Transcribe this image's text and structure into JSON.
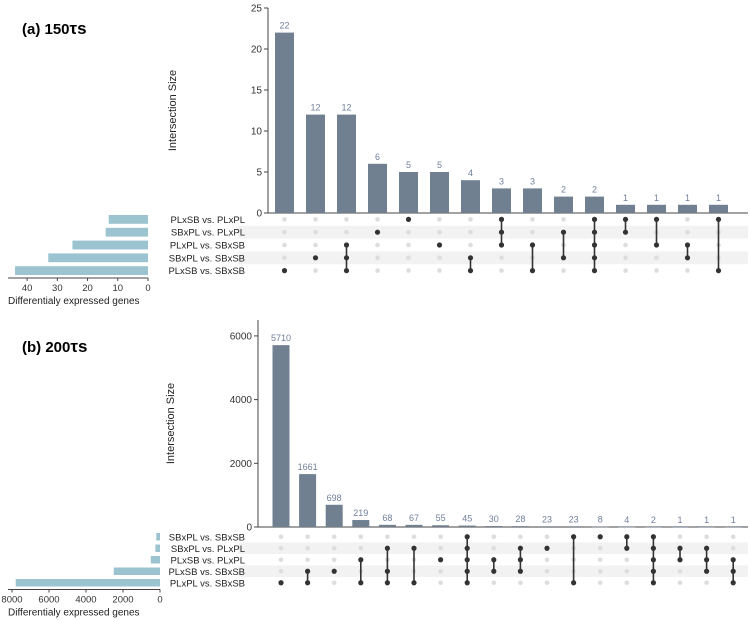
{
  "colors": {
    "bar": "#708090",
    "bar_label": "#6f7f9a",
    "set_bar": "#9cc3d0",
    "dot_on": "#333333",
    "dot_off": "#dddddd",
    "stripe": "#f2f2f2",
    "axis": "#444444"
  },
  "chart_data": [
    {
      "type": "bar",
      "panel_label": "(a) 150",
      "panel_label_tail": "τs",
      "ylabel": "Intersection Size",
      "ylim": [
        0,
        25
      ],
      "yticks": [
        "0",
        "5",
        "10",
        "15",
        "20",
        "25"
      ],
      "set_names": [
        "PLxSB vs. PLxPL",
        "SBxPL vs. PLxPL",
        "PLxPL vs. SBxSB",
        "SBxPL vs. SBxSB",
        "PLxSB vs. SBxSB"
      ],
      "set_sizes": [
        13,
        14,
        25,
        33,
        44
      ],
      "set_xlabel": "Differentialy expressed genes",
      "set_xlim": [
        0,
        45
      ],
      "set_xticks": [
        "40",
        "30",
        "20",
        "10",
        "0"
      ],
      "set_xtick_values": [
        40,
        30,
        20,
        10,
        0
      ],
      "values": [
        22,
        12,
        12,
        6,
        5,
        5,
        4,
        3,
        3,
        2,
        2,
        1,
        1,
        1,
        1
      ],
      "value_labels": [
        "22",
        "12",
        "12",
        "6",
        "5",
        "5",
        "4",
        "3",
        "3",
        "2",
        "2",
        "1",
        "1",
        "1",
        "1"
      ],
      "intersections": [
        [
          4
        ],
        [
          3
        ],
        [
          2,
          3,
          4
        ],
        [
          1
        ],
        [
          0
        ],
        [
          2
        ],
        [
          3,
          4
        ],
        [
          0,
          1,
          2
        ],
        [
          2,
          4
        ],
        [
          1,
          3
        ],
        [
          0,
          1,
          2,
          3,
          4
        ],
        [
          0,
          1
        ],
        [
          0,
          2
        ],
        [
          2,
          3
        ],
        [
          0,
          4
        ]
      ]
    },
    {
      "type": "bar",
      "panel_label": "(b) 200",
      "panel_label_tail": "τs",
      "ylabel": "Intersection Size",
      "ylim": [
        0,
        6500
      ],
      "yticks": [
        "0",
        "2000",
        "4000",
        "6000"
      ],
      "set_names": [
        "SBxPL vs. SBxSB",
        "SBxPL vs. PLxPL",
        "PLxSB vs. PLxPL",
        "PLxSB vs. SBxSB",
        "PLxPL vs. SBxSB"
      ],
      "set_sizes": [
        200,
        250,
        500,
        2500,
        7800
      ],
      "set_xlabel": "Differentialy expressed genes",
      "set_xlim": [
        0,
        8000
      ],
      "set_xticks": [
        "8000",
        "6000",
        "4000",
        "2000",
        "0"
      ],
      "set_xtick_values": [
        8000,
        6000,
        4000,
        2000,
        0
      ],
      "values": [
        5710,
        1661,
        698,
        219,
        68,
        67,
        55,
        45,
        30,
        28,
        23,
        23,
        8,
        4,
        2,
        1,
        1,
        1
      ],
      "value_labels": [
        "5710",
        "1661",
        "698",
        "219",
        "68",
        "67",
        "55",
        "45",
        "30",
        "28",
        "23",
        "23",
        "8",
        "4",
        "2",
        "1",
        "1",
        "1"
      ],
      "intersections": [
        [
          4
        ],
        [
          3,
          4
        ],
        [
          3
        ],
        [
          2,
          4
        ],
        [
          1,
          3,
          4
        ],
        [
          1,
          4
        ],
        [
          2
        ],
        [
          0,
          1,
          2,
          3,
          4
        ],
        [
          2,
          3
        ],
        [
          1,
          2,
          3
        ],
        [
          1
        ],
        [
          0,
          4
        ],
        [
          0
        ],
        [
          0,
          1
        ],
        [
          0,
          1,
          2,
          3,
          4
        ],
        [
          1,
          2
        ],
        [
          1,
          2,
          3
        ],
        [
          2,
          3,
          4
        ]
      ]
    }
  ]
}
